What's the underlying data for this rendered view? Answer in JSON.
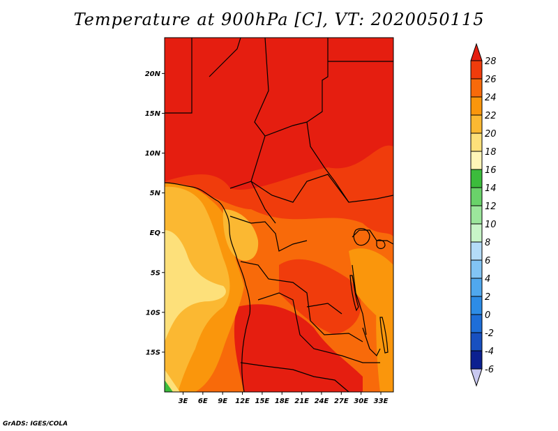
{
  "title": "Temperature at 900hPa [C], VT: 2020050115",
  "credit": "GrADS: IGES/COLA",
  "map": {
    "lat_labels": [
      "20N",
      "15N",
      "10N",
      "5N",
      "EQ",
      "5S",
      "10S",
      "15S"
    ],
    "lat_values": [
      20,
      15,
      10,
      5,
      0,
      -5,
      -10,
      -15
    ],
    "lon_labels": [
      "3E",
      "6E",
      "9E",
      "12E",
      "15E",
      "18E",
      "21E",
      "24E",
      "27E",
      "30E",
      "33E"
    ],
    "lon_values": [
      3,
      6,
      9,
      12,
      15,
      18,
      21,
      24,
      27,
      30,
      33
    ]
  },
  "colorbar": {
    "labels": [
      "28",
      "26",
      "24",
      "22",
      "20",
      "18",
      "16",
      "14",
      "12",
      "10",
      "8",
      "6",
      "4",
      "2",
      "0",
      "-2",
      "-4",
      "-6"
    ],
    "colors": [
      "#e51e10",
      "#f03c0c",
      "#f86a0a",
      "#fa960c",
      "#fbb832",
      "#fde07a",
      "#fff6b8",
      "#3cbc3c",
      "#6ad26a",
      "#9ce69c",
      "#c8f5c8",
      "#b4dcf8",
      "#82c4f4",
      "#50a8ee",
      "#2d8ce6",
      "#1e6ed8",
      "#1850c0",
      "#0c2090",
      "#c8c8f0"
    ]
  }
}
